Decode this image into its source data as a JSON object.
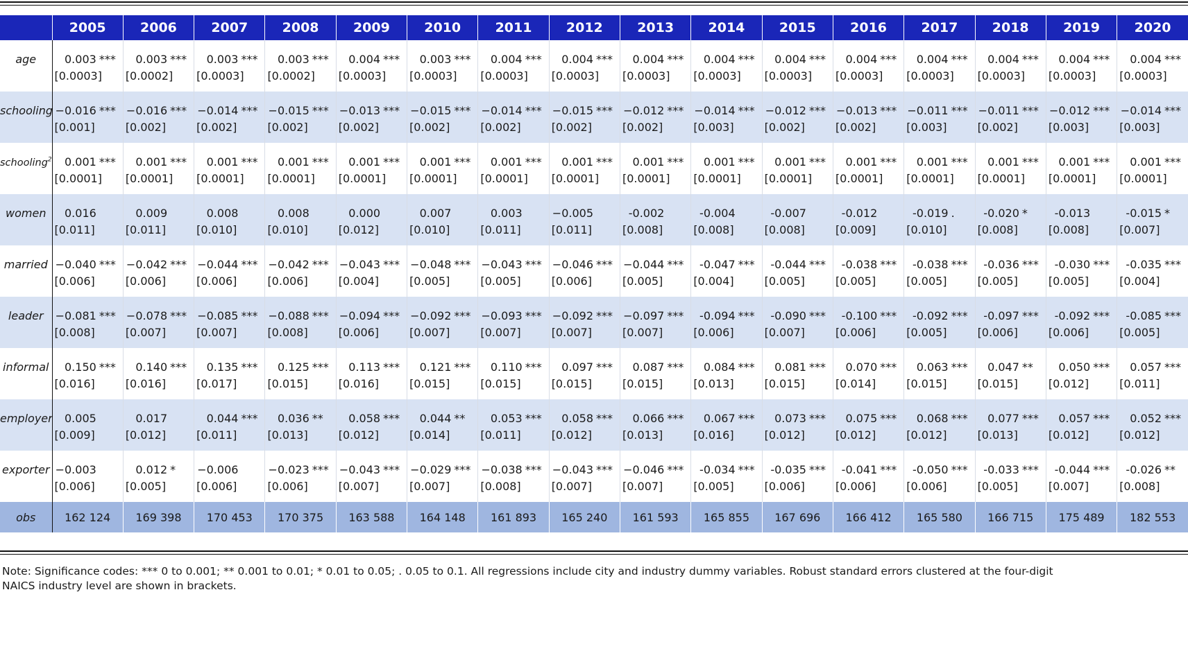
{
  "years": [
    "2005",
    "2006",
    "2007",
    "2008",
    "2009",
    "2010",
    "2011",
    "2012",
    "2013",
    "2014",
    "2015",
    "2016",
    "2017",
    "2018",
    "2019",
    "2020"
  ],
  "rows": [
    {
      "label": "age",
      "sup": "",
      "shade": false,
      "cells": [
        [
          "0.003",
          "***",
          "[0.0003]"
        ],
        [
          "0.003",
          "***",
          "[0.0002]"
        ],
        [
          "0.003",
          "***",
          "[0.0003]"
        ],
        [
          "0.003",
          "***",
          "[0.0002]"
        ],
        [
          "0.004",
          "***",
          "[0.0003]"
        ],
        [
          "0.003",
          "***",
          "[0.0003]"
        ],
        [
          "0.004",
          "***",
          "[0.0003]"
        ],
        [
          "0.004",
          "***",
          "[0.0003]"
        ],
        [
          "0.004",
          "***",
          "[0.0003]"
        ],
        [
          "0.004",
          "***",
          "[0.0003]"
        ],
        [
          "0.004",
          "***",
          "[0.0003]"
        ],
        [
          "0.004",
          "***",
          "[0.0003]"
        ],
        [
          "0.004",
          "***",
          "[0.0003]"
        ],
        [
          "0.004",
          "***",
          "[0.0003]"
        ],
        [
          "0.004",
          "***",
          "[0.0003]"
        ],
        [
          "0.004",
          "***",
          "[0.0003]"
        ]
      ]
    },
    {
      "label": "schooling",
      "sup": "",
      "shade": true,
      "cells": [
        [
          "−0.016",
          "***",
          "[0.001]"
        ],
        [
          "−0.016",
          "***",
          "[0.002]"
        ],
        [
          "−0.014",
          "***",
          "[0.002]"
        ],
        [
          "−0.015",
          "***",
          "[0.002]"
        ],
        [
          "−0.013",
          "***",
          "[0.002]"
        ],
        [
          "−0.015",
          "***",
          "[0.002]"
        ],
        [
          "−0.014",
          "***",
          "[0.002]"
        ],
        [
          "−0.015",
          "***",
          "[0.002]"
        ],
        [
          "−0.012",
          "***",
          "[0.002]"
        ],
        [
          "−0.014",
          "***",
          "[0.003]"
        ],
        [
          "−0.012",
          "***",
          "[0.002]"
        ],
        [
          "−0.013",
          "***",
          "[0.002]"
        ],
        [
          "−0.011",
          "***",
          "[0.003]"
        ],
        [
          "−0.011",
          "***",
          "[0.002]"
        ],
        [
          "−0.012",
          "***",
          "[0.003]"
        ],
        [
          "−0.014",
          "***",
          "[0.003]"
        ]
      ]
    },
    {
      "label": "schooling",
      "sup": "2",
      "shade": false,
      "cells": [
        [
          "0.001",
          "***",
          "[0.0001]"
        ],
        [
          "0.001",
          "***",
          "[0.0001]"
        ],
        [
          "0.001",
          "***",
          "[0.0001]"
        ],
        [
          "0.001",
          "***",
          "[0.0001]"
        ],
        [
          "0.001",
          "***",
          "[0.0001]"
        ],
        [
          "0.001",
          "***",
          "[0.0001]"
        ],
        [
          "0.001",
          "***",
          "[0.0001]"
        ],
        [
          "0.001",
          "***",
          "[0.0001]"
        ],
        [
          "0.001",
          "***",
          "[0.0001]"
        ],
        [
          "0.001",
          "***",
          "[0.0001]"
        ],
        [
          "0.001",
          "***",
          "[0.0001]"
        ],
        [
          "0.001",
          "***",
          "[0.0001]"
        ],
        [
          "0.001",
          "***",
          "[0.0001]"
        ],
        [
          "0.001",
          "***",
          "[0.0001]"
        ],
        [
          "0.001",
          "***",
          "[0.0001]"
        ],
        [
          "0.001",
          "***",
          "[0.0001]"
        ]
      ]
    },
    {
      "label": "women",
      "sup": "",
      "shade": true,
      "cells": [
        [
          "0.016",
          "",
          "[0.011]"
        ],
        [
          "0.009",
          "",
          "[0.011]"
        ],
        [
          "0.008",
          "",
          "[0.010]"
        ],
        [
          "0.008",
          "",
          "[0.010]"
        ],
        [
          "0.000",
          "",
          "[0.012]"
        ],
        [
          "0.007",
          "",
          "[0.010]"
        ],
        [
          "0.003",
          "",
          "[0.011]"
        ],
        [
          "−0.005",
          "",
          "[0.011]"
        ],
        [
          "-0.002",
          "",
          "[0.008]"
        ],
        [
          "-0.004",
          "",
          "[0.008]"
        ],
        [
          "-0.007",
          "",
          "[0.008]"
        ],
        [
          "-0.012",
          "",
          "[0.009]"
        ],
        [
          "-0.019",
          ".",
          "[0.010]"
        ],
        [
          "-0.020",
          "*",
          "[0.008]"
        ],
        [
          "-0.013",
          "",
          "[0.008]"
        ],
        [
          "-0.015",
          "*",
          "[0.007]"
        ]
      ]
    },
    {
      "label": "married",
      "sup": "",
      "shade": false,
      "cells": [
        [
          "−0.040",
          "***",
          "[0.006]"
        ],
        [
          "−0.042",
          "***",
          "[0.006]"
        ],
        [
          "−0.044",
          "***",
          "[0.006]"
        ],
        [
          "−0.042",
          "***",
          "[0.006]"
        ],
        [
          "−0.043",
          "***",
          "[0.004]"
        ],
        [
          "−0.048",
          "***",
          "[0.005]"
        ],
        [
          "−0.043",
          "***",
          "[0.005]"
        ],
        [
          "−0.046",
          "***",
          "[0.006]"
        ],
        [
          "−0.044",
          "***",
          "[0.005]"
        ],
        [
          "-0.047",
          "***",
          "[0.004]"
        ],
        [
          "-0.044",
          "***",
          "[0.005]"
        ],
        [
          "-0.038",
          "***",
          "[0.005]"
        ],
        [
          "-0.038",
          "***",
          "[0.005]"
        ],
        [
          "-0.036",
          "***",
          "[0.005]"
        ],
        [
          "-0.030",
          "***",
          "[0.005]"
        ],
        [
          "-0.035",
          "***",
          "[0.004]"
        ]
      ]
    },
    {
      "label": "leader",
      "sup": "",
      "shade": true,
      "cells": [
        [
          "−0.081",
          "***",
          "[0.008]"
        ],
        [
          "−0.078",
          "***",
          "[0.007]"
        ],
        [
          "−0.085",
          "***",
          "[0.007]"
        ],
        [
          "−0.088",
          "***",
          "[0.008]"
        ],
        [
          "−0.094",
          "***",
          "[0.006]"
        ],
        [
          "−0.092",
          "***",
          "[0.007]"
        ],
        [
          "−0.093",
          "***",
          "[0.007]"
        ],
        [
          "−0.092",
          "***",
          "[0.007]"
        ],
        [
          "−0.097",
          "***",
          "[0.007]"
        ],
        [
          "-0.094",
          "***",
          "[0.006]"
        ],
        [
          "-0.090",
          "***",
          "[0.007]"
        ],
        [
          "-0.100",
          "***",
          "[0.006]"
        ],
        [
          "-0.092",
          "***",
          "[0.005]"
        ],
        [
          "-0.097",
          "***",
          "[0.006]"
        ],
        [
          "-0.092",
          "***",
          "[0.006]"
        ],
        [
          "-0.085",
          "***",
          "[0.005]"
        ]
      ]
    },
    {
      "label": "informal",
      "sup": "",
      "shade": false,
      "cells": [
        [
          "0.150",
          "***",
          "[0.016]"
        ],
        [
          "0.140",
          "***",
          "[0.016]"
        ],
        [
          "0.135",
          "***",
          "[0.017]"
        ],
        [
          "0.125",
          "***",
          "[0.015]"
        ],
        [
          "0.113",
          "***",
          "[0.016]"
        ],
        [
          "0.121",
          "***",
          "[0.015]"
        ],
        [
          "0.110",
          "***",
          "[0.015]"
        ],
        [
          "0.097",
          "***",
          "[0.015]"
        ],
        [
          "0.087",
          "***",
          "[0.015]"
        ],
        [
          "0.084",
          "***",
          "[0.013]"
        ],
        [
          "0.081",
          "***",
          "[0.015]"
        ],
        [
          "0.070",
          "***",
          "[0.014]"
        ],
        [
          "0.063",
          "***",
          "[0.015]"
        ],
        [
          "0.047",
          "**",
          "[0.015]"
        ],
        [
          "0.050",
          "***",
          "[0.012]"
        ],
        [
          "0.057",
          "***",
          "[0.011]"
        ]
      ]
    },
    {
      "label": "employer",
      "sup": "",
      "shade": true,
      "cells": [
        [
          "0.005",
          "",
          "[0.009]"
        ],
        [
          "0.017",
          "",
          "[0.012]"
        ],
        [
          "0.044",
          "***",
          "[0.011]"
        ],
        [
          "0.036",
          "**",
          "[0.013]"
        ],
        [
          "0.058",
          "***",
          "[0.012]"
        ],
        [
          "0.044",
          "**",
          "[0.014]"
        ],
        [
          "0.053",
          "***",
          "[0.011]"
        ],
        [
          "0.058",
          "***",
          "[0.012]"
        ],
        [
          "0.066",
          "***",
          "[0.013]"
        ],
        [
          "0.067",
          "***",
          "[0.016]"
        ],
        [
          "0.073",
          "***",
          "[0.012]"
        ],
        [
          "0.075",
          "***",
          "[0.012]"
        ],
        [
          "0.068",
          "***",
          "[0.012]"
        ],
        [
          "0.077",
          "***",
          "[0.013]"
        ],
        [
          "0.057",
          "***",
          "[0.012]"
        ],
        [
          "0.052",
          "***",
          "[0.012]"
        ]
      ]
    },
    {
      "label": "exporter",
      "sup": "",
      "shade": false,
      "cells": [
        [
          "−0.003",
          "",
          "[0.006]"
        ],
        [
          "0.012",
          "*",
          "[0.005]"
        ],
        [
          "−0.006",
          "",
          "[0.006]"
        ],
        [
          "−0.023",
          "***",
          "[0.006]"
        ],
        [
          "−0.043",
          "***",
          "[0.007]"
        ],
        [
          "−0.029",
          "***",
          "[0.007]"
        ],
        [
          "−0.038",
          "***",
          "[0.008]"
        ],
        [
          "−0.043",
          "***",
          "[0.007]"
        ],
        [
          "−0.046",
          "***",
          "[0.007]"
        ],
        [
          "-0.034",
          "***",
          "[0.005]"
        ],
        [
          "-0.035",
          "***",
          "[0.006]"
        ],
        [
          "-0.041",
          "***",
          "[0.006]"
        ],
        [
          "-0.050",
          "***",
          "[0.006]"
        ],
        [
          "-0.033",
          "***",
          "[0.005]"
        ],
        [
          "-0.044",
          "***",
          "[0.007]"
        ],
        [
          "-0.026",
          "**",
          "[0.008]"
        ]
      ]
    }
  ],
  "obs": {
    "label": "obs",
    "values": [
      "162 124",
      "169 398",
      "170 453",
      "170 375",
      "163 588",
      "164 148",
      "161 893",
      "165 240",
      "161 593",
      "165 855",
      "167 696",
      "166 412",
      "165 580",
      "166 715",
      "175 489",
      "182 553"
    ]
  },
  "note": "Note: Significance codes: *** 0 to 0.001; ** 0.001 to 0.01; * 0.01 to 0.05; . 0.05 to 0.1. All regressions include city and industry dummy variables. Robust standard errors clustered at the four-digit NAICS industry level are shown in brackets.",
  "colors": {
    "header_bg": "#1a26b8",
    "shade_row": "#d8e2f3",
    "obs_row": "#9fb6e0"
  }
}
